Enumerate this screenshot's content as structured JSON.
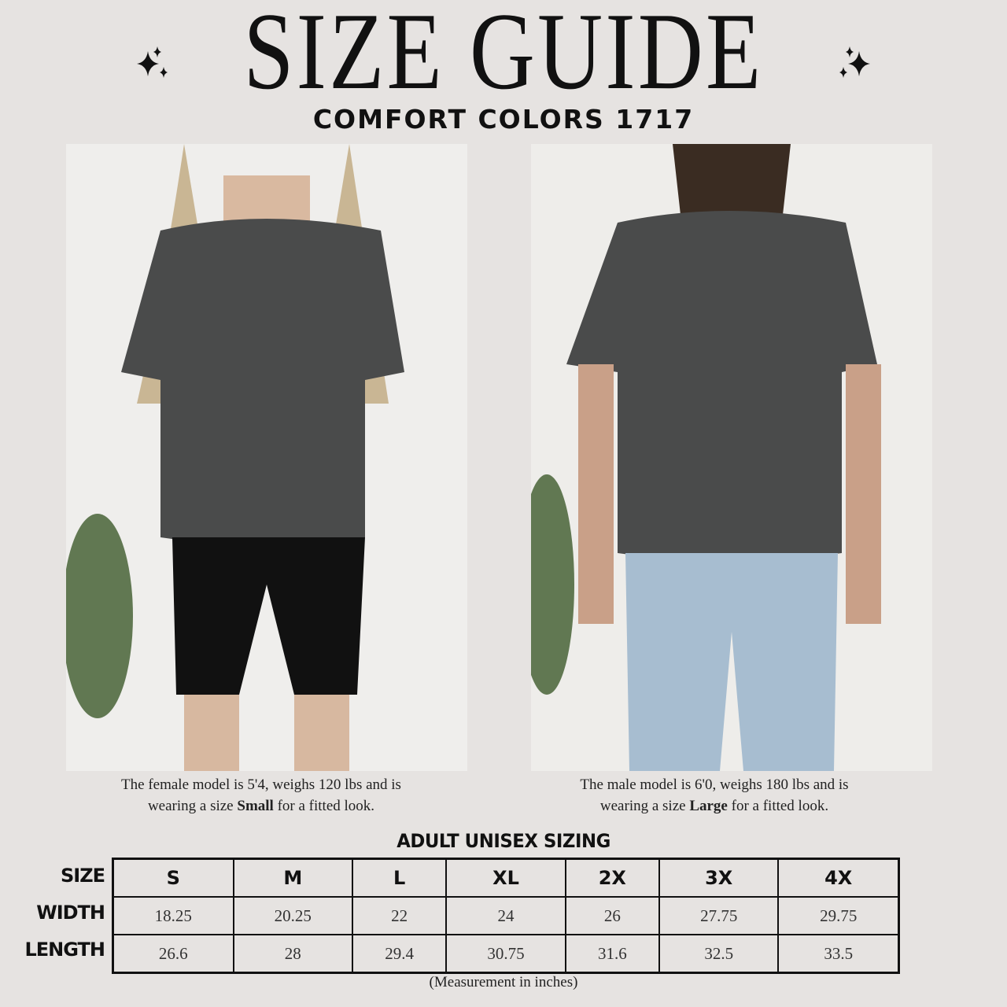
{
  "header": {
    "title": "SIZE GUIDE",
    "subtitle": "COMFORT COLORS 1717",
    "decor_icon": "sparkle-icon"
  },
  "models": [
    {
      "photo": "female model wearing dark gray t-shirt",
      "caption_pre": "The female model is 5'4, weighs 120 lbs and is",
      "caption_line2_pre": "wearing a size ",
      "size": "Small",
      "caption_post": " for a fitted look."
    },
    {
      "photo": "male model wearing dark gray t-shirt",
      "caption_pre": "The male model is 6'0, weighs 180 lbs and is",
      "caption_line2_pre": "wearing a size ",
      "size": "Large",
      "caption_post": " for a fitted look."
    }
  ],
  "sizing": {
    "title": "ADULT UNISEX SIZING",
    "row_labels": [
      "SIZE",
      "WIDTH",
      "LENGTH"
    ],
    "sizes": [
      "S",
      "M",
      "L",
      "XL",
      "2X",
      "3X",
      "4X"
    ],
    "width": [
      "18.25",
      "20.25",
      "22",
      "24",
      "26",
      "27.75",
      "29.75"
    ],
    "length": [
      "26.6",
      "28",
      "29.4",
      "30.75",
      "31.6",
      "32.5",
      "33.5"
    ],
    "note": "(Measurement in inches)"
  },
  "colors": {
    "background": "#e6e3e1",
    "text": "#111111",
    "shirt": "#4a4b4b"
  }
}
